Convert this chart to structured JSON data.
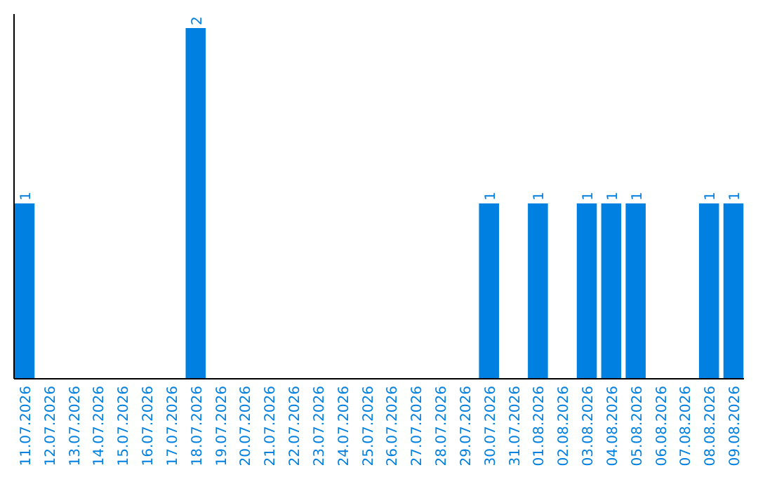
{
  "chart_data": {
    "type": "bar",
    "categories": [
      "11.07.2026",
      "12.07.2026",
      "13.07.2026",
      "14.07.2026",
      "15.07.2026",
      "16.07.2026",
      "17.07.2026",
      "18.07.2026",
      "19.07.2026",
      "20.07.2026",
      "21.07.2026",
      "22.07.2026",
      "23.07.2026",
      "24.07.2026",
      "25.07.2026",
      "26.07.2026",
      "27.07.2026",
      "28.07.2026",
      "29.07.2026",
      "30.07.2026",
      "31.07.2026",
      "01.08.2026",
      "02.08.2026",
      "03.08.2026",
      "04.08.2026",
      "05.08.2026",
      "06.08.2026",
      "07.08.2026",
      "08.08.2026",
      "09.08.2026"
    ],
    "values": [
      1,
      0,
      0,
      0,
      0,
      0,
      0,
      2,
      0,
      0,
      0,
      0,
      0,
      0,
      0,
      0,
      0,
      0,
      0,
      1,
      0,
      1,
      0,
      1,
      1,
      1,
      0,
      0,
      1,
      1
    ],
    "value_labels": [
      "1",
      null,
      null,
      null,
      null,
      null,
      null,
      "2",
      null,
      null,
      null,
      null,
      null,
      null,
      null,
      null,
      null,
      null,
      null,
      "1",
      null,
      "1",
      null,
      "1",
      "1",
      "1",
      null,
      null,
      "1",
      "1"
    ],
    "color": "#0080e0",
    "ylim": [
      0,
      2.08
    ]
  }
}
